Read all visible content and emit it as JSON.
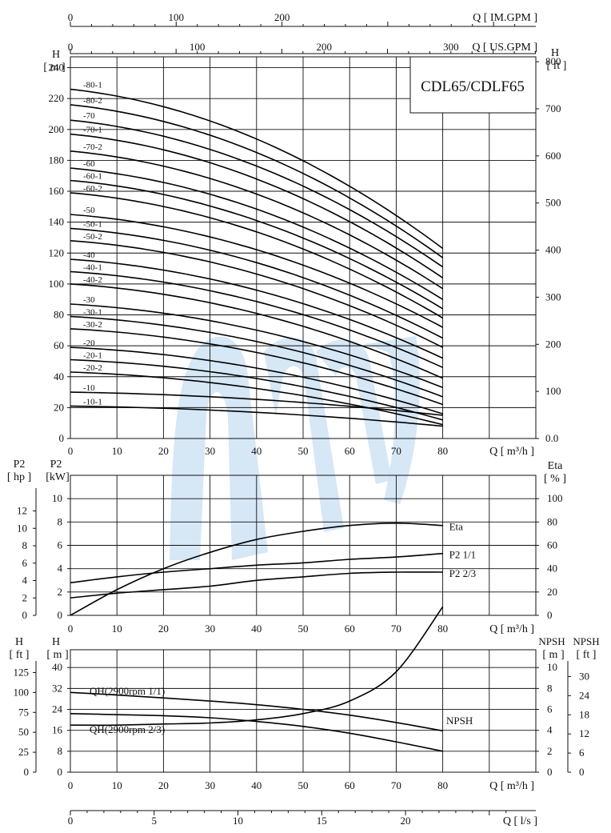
{
  "chart_data": [
    {
      "type": "line",
      "panel": "H-Q",
      "title": "CDL65/CDLF65",
      "x": [
        0,
        10,
        20,
        30,
        40,
        50,
        60,
        70,
        80
      ],
      "xlabel": "Q [ m³/h ]",
      "xlim": [
        0,
        100
      ],
      "x_top_labels": [
        {
          "label": "Q [ US.GPM ]",
          "ticks": [
            "0",
            "100",
            "200",
            "300"
          ]
        },
        {
          "label": "Q [ IM.GPM ]",
          "ticks": [
            "0",
            "100",
            "200"
          ]
        }
      ],
      "ylabel_left": "H [ m ]",
      "ylim_left": [
        0,
        240
      ],
      "yticks_left": [
        "0",
        "20",
        "40",
        "60",
        "80",
        "100",
        "120",
        "140",
        "160",
        "180",
        "200",
        "220",
        "240"
      ],
      "ylabel_right": "H [ ft ]",
      "yticks_right": [
        "0.0",
        "100",
        "200",
        "300",
        "400",
        "500",
        "600",
        "700",
        "800"
      ],
      "series": [
        {
          "name": "-80-1",
          "y0": 226,
          "y80": 123
        },
        {
          "name": "-80-2",
          "y0": 216,
          "y80": 117
        },
        {
          "name": "-70",
          "y0": 206,
          "y80": 111
        },
        {
          "name": "-70-1",
          "y0": 197,
          "y80": 104
        },
        {
          "name": "-70-2",
          "y0": 186,
          "y80": 97
        },
        {
          "name": "-60",
          "y0": 175,
          "y80": 90
        },
        {
          "name": "-60-1",
          "y0": 167,
          "y80": 84
        },
        {
          "name": "-60-2",
          "y0": 159,
          "y80": 78
        },
        {
          "name": "-50",
          "y0": 145,
          "y80": 72
        },
        {
          "name": "-50-1",
          "y0": 136,
          "y80": 65
        },
        {
          "name": "-50-2",
          "y0": 128,
          "y80": 59
        },
        {
          "name": "-40",
          "y0": 116,
          "y80": 52
        },
        {
          "name": "-40-1",
          "y0": 108,
          "y80": 46
        },
        {
          "name": "-40-2",
          "y0": 100,
          "y80": 39
        },
        {
          "name": "-30",
          "y0": 87,
          "y80": 33
        },
        {
          "name": "-30-1",
          "y0": 79,
          "y80": 27
        },
        {
          "name": "-30-2",
          "y0": 71,
          "y80": 22
        },
        {
          "name": "-20",
          "y0": 59,
          "y80": 16
        },
        {
          "name": "-20-1",
          "y0": 51,
          "y80": 12
        },
        {
          "name": "-20-2",
          "y0": 43,
          "y80": 9
        },
        {
          "name": "-10",
          "y0": 30,
          "y80": 15
        },
        {
          "name": "-10-1",
          "y0": 21,
          "y80": 8
        }
      ],
      "grid": true
    },
    {
      "type": "line",
      "panel": "P2-Eta",
      "x": [
        0,
        10,
        20,
        30,
        40,
        50,
        60,
        70,
        80
      ],
      "xlabel": "Q [ m³/h ]",
      "xlim": [
        0,
        100
      ],
      "ylabel_left_hp": "P2 [ hp ]",
      "yticks_left_hp": [
        "0",
        "2",
        "4",
        "6",
        "8",
        "10",
        "12"
      ],
      "ylabel_left_kw": "P2 [kW]",
      "ylim_left_kw": [
        0,
        12
      ],
      "yticks_left_kw": [
        "0",
        "2",
        "4",
        "6",
        "8",
        "10"
      ],
      "ylabel_right": "Eta [ % ]",
      "ylim_right": [
        0,
        120
      ],
      "yticks_right": [
        "0",
        "20",
        "40",
        "60",
        "80",
        "100"
      ],
      "series": [
        {
          "name": "Eta",
          "axis": "right",
          "values": [
            0,
            22,
            40,
            54,
            65,
            72,
            77,
            79,
            77
          ]
        },
        {
          "name": "P2  1/1",
          "axis": "left",
          "values": [
            2.8,
            3.3,
            3.7,
            4.0,
            4.3,
            4.5,
            4.8,
            5.0,
            5.3
          ]
        },
        {
          "name": "P2  2/3",
          "axis": "left",
          "values": [
            1.5,
            1.9,
            2.2,
            2.5,
            3.0,
            3.3,
            3.6,
            3.7,
            3.7
          ]
        }
      ],
      "grid": true
    },
    {
      "type": "line",
      "panel": "QH-NPSH",
      "x": [
        0,
        10,
        20,
        30,
        40,
        50,
        60,
        70,
        80
      ],
      "xlabel": "Q [ m³/h ]",
      "xlim": [
        0,
        100
      ],
      "ylabel_left_ft": "H [ ft ]",
      "yticks_left_ft": [
        "0",
        "25",
        "50",
        "75",
        "100",
        "125"
      ],
      "ylabel_left_m": "H [ m ]",
      "ylim_left_m": [
        0,
        48
      ],
      "yticks_left_m": [
        "0",
        "8",
        "16",
        "24",
        "32",
        "40"
      ],
      "ylabel_right_m": "NPSH [ m ]",
      "ylim_right_m": [
        0,
        12
      ],
      "yticks_right_m": [
        "0",
        "2",
        "4",
        "6",
        "8",
        "10"
      ],
      "ylabel_right_ft": "NPSH [ ft ]",
      "yticks_right_ft": [
        "0",
        "6",
        "12",
        "18",
        "24",
        "30"
      ],
      "series": [
        {
          "name": "QH(2900rpm 1/1)",
          "axis": "left",
          "values": [
            30.5,
            29.5,
            28.4,
            27.2,
            25.8,
            24.0,
            21.8,
            19.0,
            15.8
          ]
        },
        {
          "name": "QH(2900rpm 2/3)",
          "axis": "left",
          "values": [
            22.4,
            22.0,
            21.6,
            20.8,
            19.4,
            17.5,
            14.9,
            11.6,
            8.0
          ]
        },
        {
          "name": "NPSH",
          "axis": "right",
          "values": [
            4.5,
            4.5,
            4.6,
            4.7,
            5.0,
            5.6,
            6.8,
            9.6,
            15.8
          ]
        }
      ],
      "grid": true
    },
    {
      "type": "line",
      "panel": "flow-lps-axis",
      "xlabel": "Q [ l/s ]",
      "xticks": [
        "0",
        "5",
        "10",
        "15",
        "20"
      ]
    }
  ]
}
